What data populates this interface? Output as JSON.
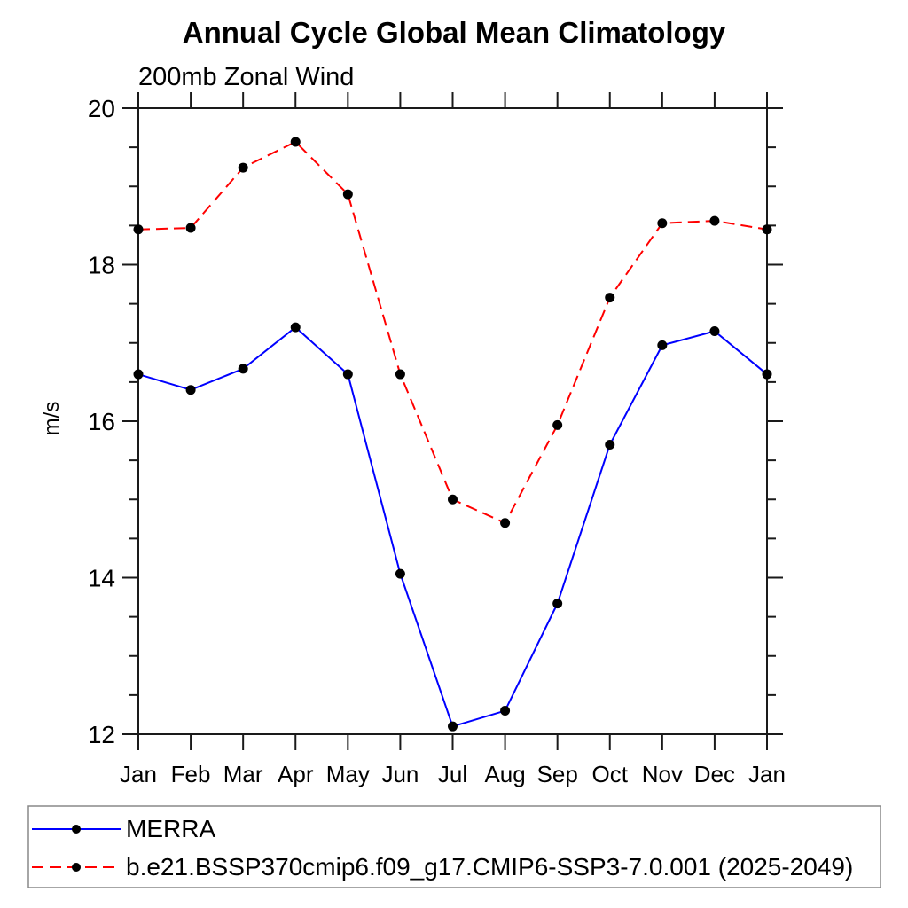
{
  "chart_data": {
    "type": "line",
    "title": "Annual Cycle Global Mean Climatology",
    "subtitle": "200mb Zonal Wind",
    "xlabel": "",
    "ylabel": "m/s",
    "categories": [
      "Jan",
      "Feb",
      "Mar",
      "Apr",
      "May",
      "Jun",
      "Jul",
      "Aug",
      "Sep",
      "Oct",
      "Nov",
      "Dec",
      "Jan"
    ],
    "ylim": [
      12,
      20
    ],
    "y_major_ticks": [
      12,
      14,
      16,
      18,
      20
    ],
    "y_major_tick_labels": [
      "12",
      "14",
      "16",
      "18",
      "20"
    ],
    "y_minor_step": 0.5,
    "grid": false,
    "legend_position": "bottom-left-box",
    "series": [
      {
        "name": "MERRA",
        "color": "#0000ff",
        "line_style": "solid",
        "marker": "filled-circle",
        "marker_color": "#000000",
        "values": [
          16.6,
          16.4,
          16.67,
          17.2,
          16.6,
          14.05,
          12.1,
          12.3,
          13.67,
          15.7,
          16.97,
          17.15,
          16.6
        ]
      },
      {
        "name": "b.e21.BSSP370cmip6.f09_g17.CMIP6-SSP3-7.0.001 (2025-2049)",
        "color": "#ff0000",
        "line_style": "dashed",
        "marker": "filled-circle",
        "marker_color": "#000000",
        "values": [
          18.45,
          18.47,
          19.24,
          19.57,
          18.9,
          16.6,
          15.0,
          14.7,
          15.95,
          17.58,
          18.53,
          18.56,
          18.45
        ]
      }
    ],
    "axis_color": "#1a1a1a",
    "legend_border_color": "#888888"
  }
}
